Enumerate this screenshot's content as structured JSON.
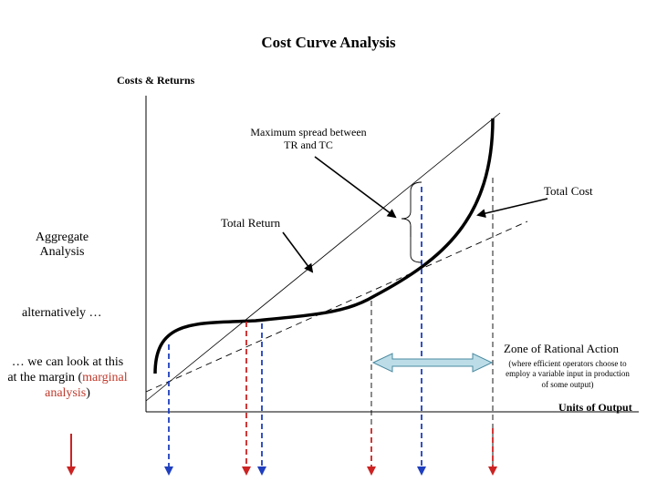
{
  "title": "Cost Curve Analysis",
  "axes": {
    "y_label": "Costs & Returns",
    "x_label": "Units of Output"
  },
  "annotations": {
    "max_spread": "Maximum spread between TR and TC",
    "total_cost": "Total Cost",
    "total_return": "Total Return",
    "aggregate": "Aggregate Analysis",
    "alternatively": "alternatively …",
    "margin_prefix": "… we can look at this at the margin (",
    "margin_highlight": "marginal analysis",
    "margin_suffix": ")",
    "zone_title": "Zone of Rational Action",
    "zone_note": "(where efficient operators choose to employ a variable input in production of some output)"
  },
  "colors": {
    "curve": "#000000",
    "blue_arrow": "#1f3fbf",
    "red_arrow": "#cc2222",
    "zone_arrow_fill": "#bcdde8",
    "zone_arrow_stroke": "#4a8aa0"
  }
}
